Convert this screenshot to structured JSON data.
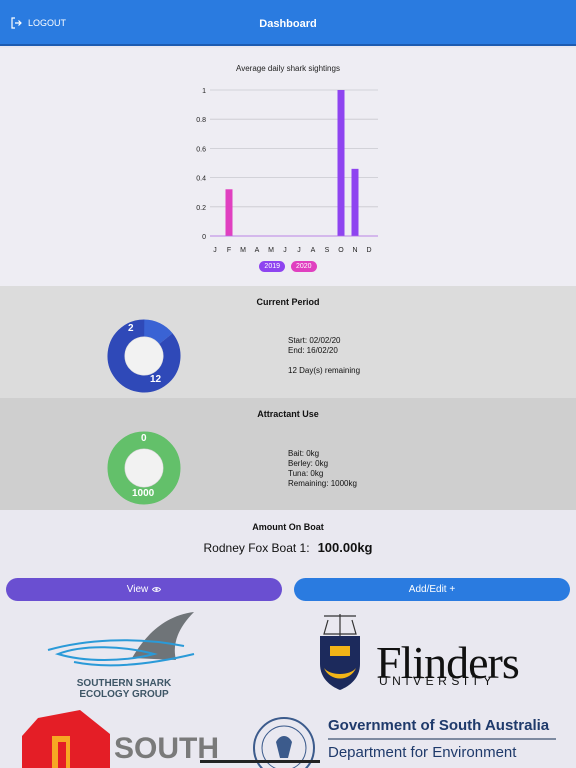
{
  "header": {
    "title": "Dashboard",
    "logout_label": "LOGOUT"
  },
  "chart_data": {
    "type": "bar",
    "title": "Average daily shark sightings",
    "categories": [
      "J",
      "F",
      "M",
      "A",
      "M",
      "J",
      "J",
      "A",
      "S",
      "O",
      "N",
      "D"
    ],
    "yticks": [
      "0",
      "0.2",
      "0.4",
      "0.6",
      "0.8",
      "1"
    ],
    "ylim": [
      0,
      1
    ],
    "series": [
      {
        "name": "2019",
        "color": "#8e44f0",
        "values": [
          0,
          0,
          0,
          0,
          0,
          0,
          0,
          0,
          0,
          1.0,
          0.46,
          0
        ]
      },
      {
        "name": "2020",
        "color": "#e040c0",
        "values": [
          0,
          0.32,
          0,
          0,
          0,
          0,
          0,
          0,
          0,
          0,
          0,
          0
        ]
      }
    ],
    "legend": "bottom"
  },
  "current_period": {
    "title": "Current Period",
    "donut_values": [
      2,
      12
    ],
    "donut_colors": [
      "#3a63d4",
      "#2f49b8"
    ],
    "start": "Start: 02/02/20",
    "end": "End: 16/02/20",
    "remaining": "12 Day(s) remaining"
  },
  "attractant": {
    "title": "Attractant Use",
    "donut_values": [
      0,
      1000
    ],
    "donut_color": "#63c06a",
    "bait": "Bait: 0kg",
    "berley": "Berley: 0kg",
    "tuna": "Tuna: 0kg",
    "remaining": "Remaining: 1000kg"
  },
  "boat": {
    "title": "Amount On Boat",
    "name": "Rodney Fox Boat 1:",
    "amount": "100.00kg"
  },
  "buttons": {
    "view": "View",
    "add_edit": "Add/Edit +"
  },
  "logos": {
    "ssg": "SOUTHERN SHARK ECOLOGY GROUP",
    "flinders": "Flinders",
    "flinders_sub": "UNIVERSITY",
    "gov_title": "Government of South Australia",
    "gov_dept": "Department for Environment",
    "south": "SOUTH"
  }
}
